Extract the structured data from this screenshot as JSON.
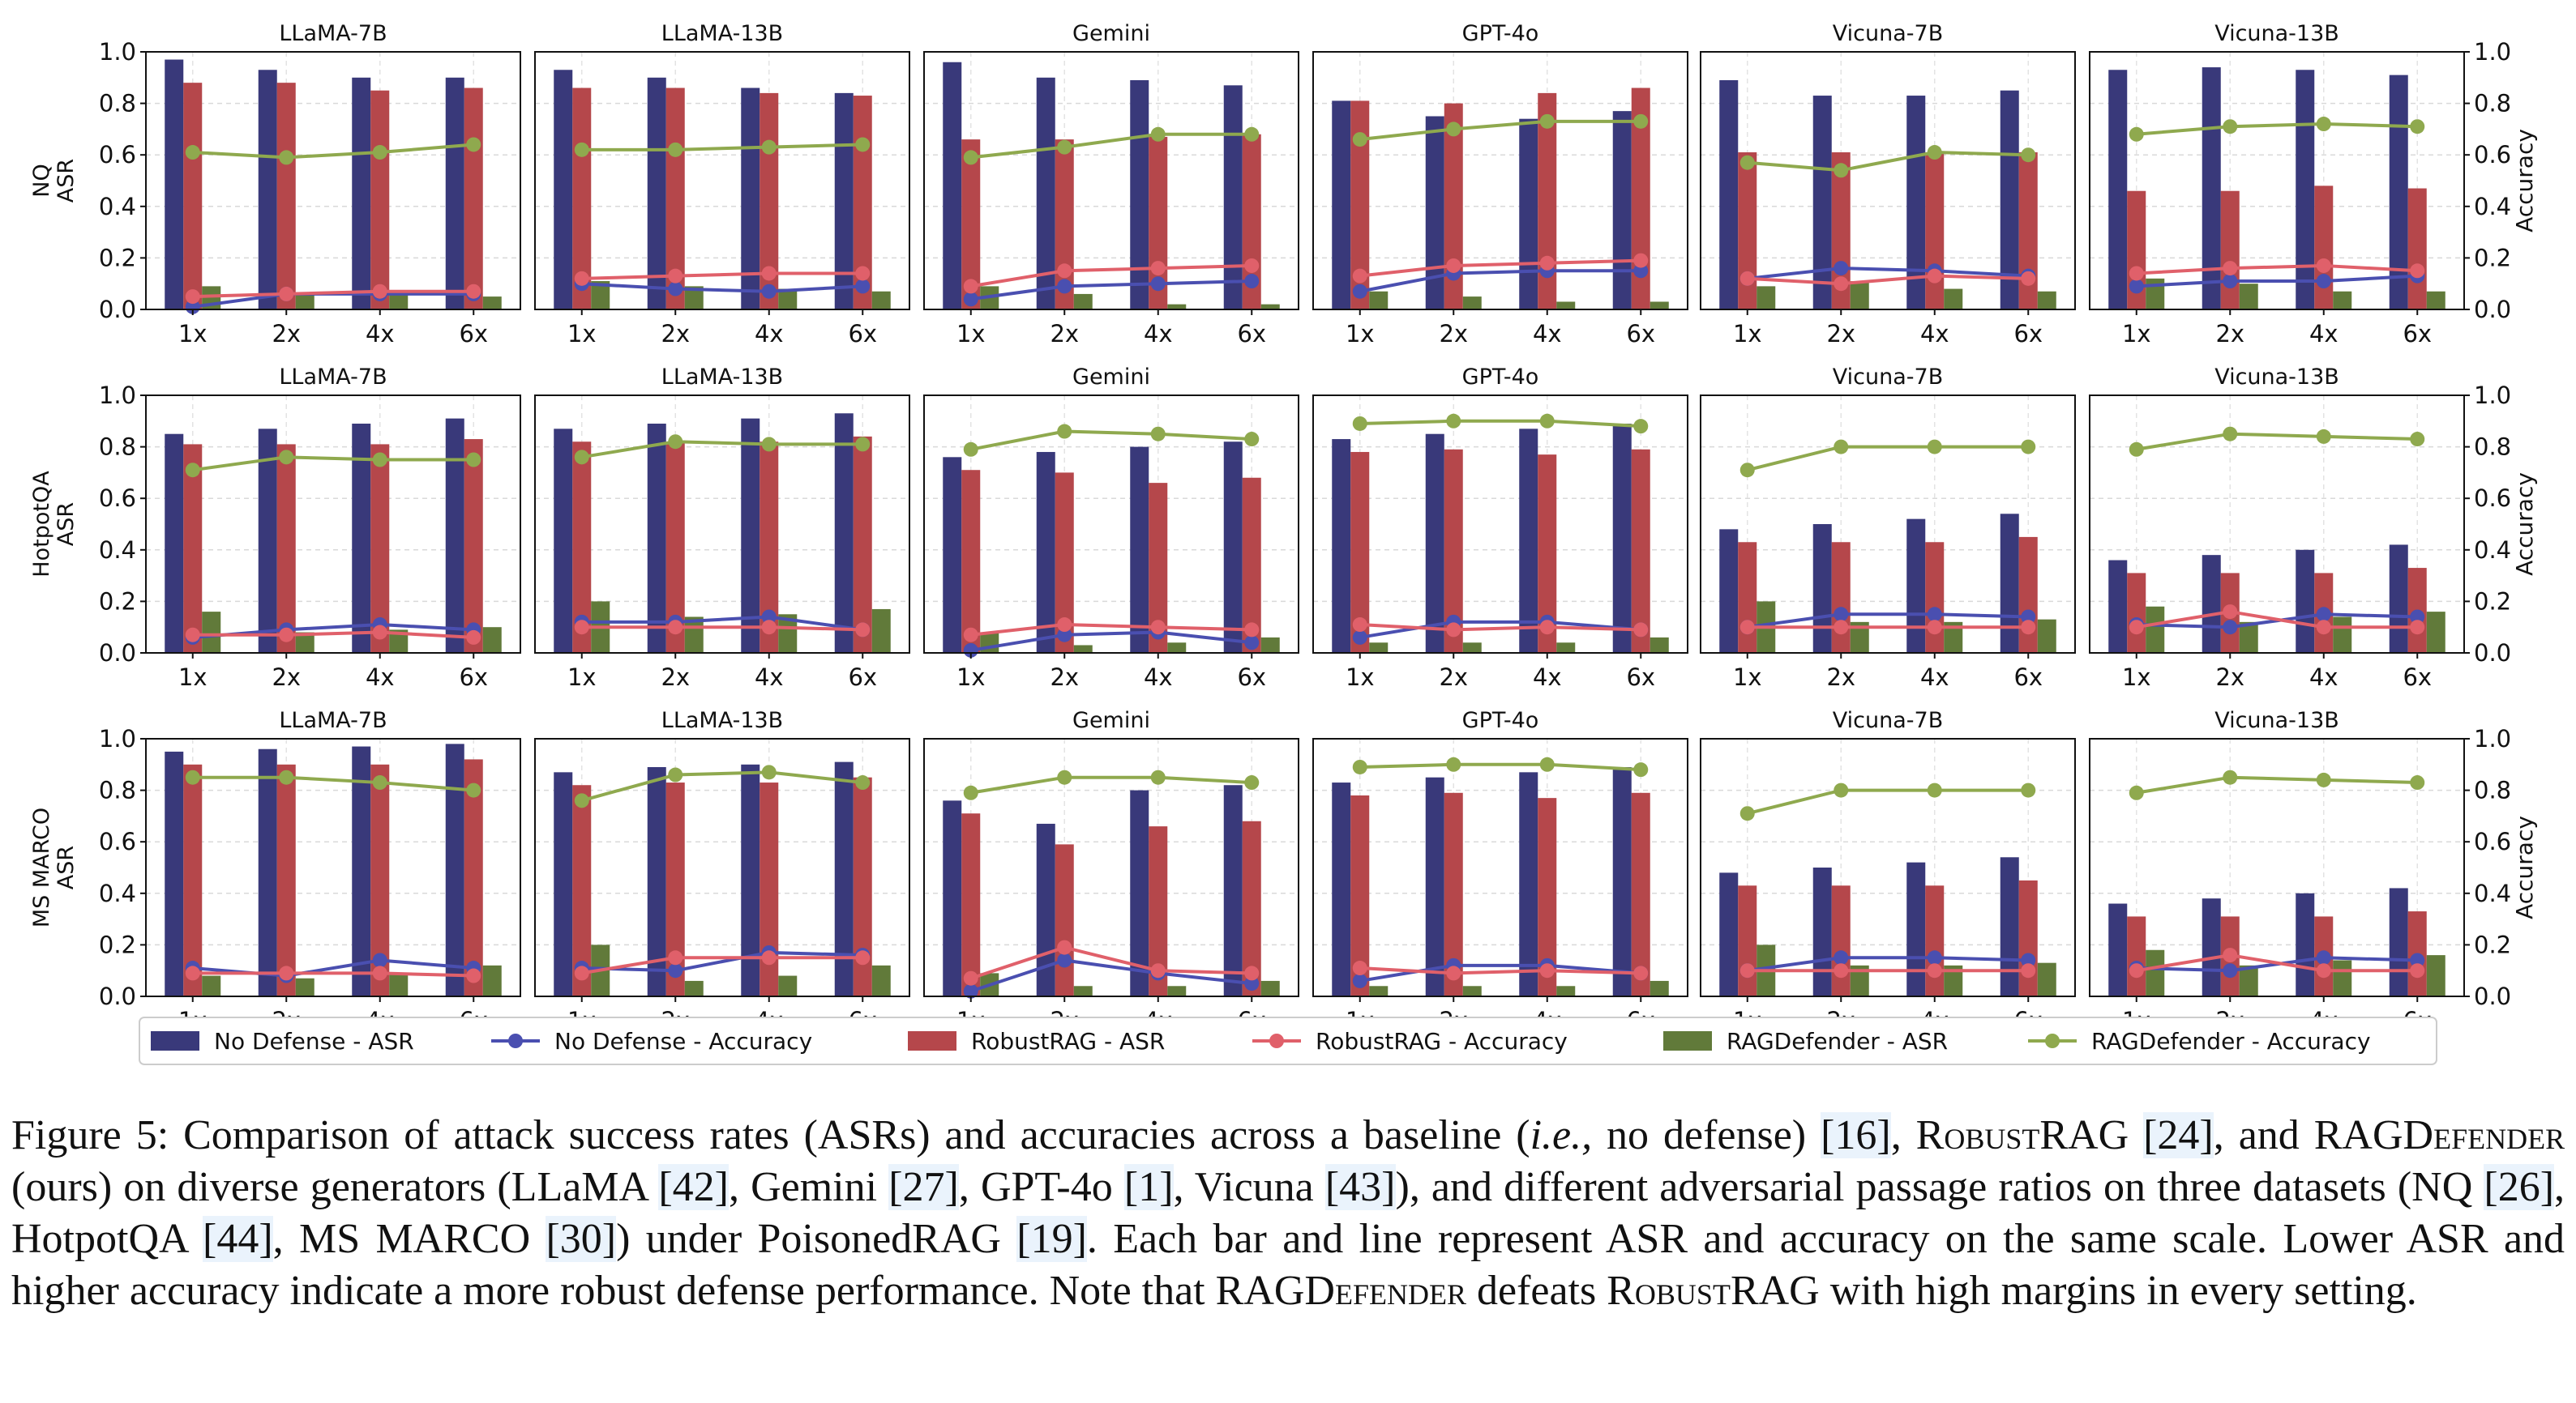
{
  "chart_data": {
    "type": "bar+line",
    "ylim": [
      0,
      1.0
    ],
    "yticks": [
      "0.0",
      "0.2",
      "0.4",
      "0.6",
      "0.8",
      "1.0"
    ],
    "categories": [
      "1x",
      "2x",
      "4x",
      "6x"
    ],
    "left_axis_suffix": "ASR",
    "right_axis_label": "Accuracy",
    "rows": [
      {
        "dataset": "NQ",
        "panels": [
          {
            "title": "LLaMA-7B",
            "nd_asr": [
              0.97,
              0.93,
              0.9,
              0.9
            ],
            "nd_acc": [
              0.01,
              0.06,
              0.06,
              0.06
            ],
            "rr_asr": [
              0.88,
              0.88,
              0.85,
              0.86
            ],
            "rr_acc": [
              0.05,
              0.06,
              0.07,
              0.07
            ],
            "rd_asr": [
              0.09,
              0.06,
              0.06,
              0.05
            ],
            "rd_acc": [
              0.61,
              0.59,
              0.61,
              0.64
            ]
          },
          {
            "title": "LLaMA-13B",
            "nd_asr": [
              0.93,
              0.9,
              0.86,
              0.84
            ],
            "nd_acc": [
              0.1,
              0.08,
              0.07,
              0.09
            ],
            "rr_asr": [
              0.86,
              0.86,
              0.84,
              0.83
            ],
            "rr_acc": [
              0.12,
              0.13,
              0.14,
              0.14
            ],
            "rd_asr": [
              0.11,
              0.09,
              0.08,
              0.07
            ],
            "rd_acc": [
              0.62,
              0.62,
              0.63,
              0.64
            ]
          },
          {
            "title": "Gemini",
            "nd_asr": [
              0.96,
              0.9,
              0.89,
              0.87
            ],
            "nd_acc": [
              0.04,
              0.09,
              0.1,
              0.11
            ],
            "rr_asr": [
              0.66,
              0.66,
              0.67,
              0.68
            ],
            "rr_acc": [
              0.09,
              0.15,
              0.16,
              0.17
            ],
            "rd_asr": [
              0.09,
              0.06,
              0.02,
              0.02
            ],
            "rd_acc": [
              0.59,
              0.63,
              0.68,
              0.68
            ]
          },
          {
            "title": "GPT-4o",
            "nd_asr": [
              0.81,
              0.75,
              0.74,
              0.77
            ],
            "nd_acc": [
              0.07,
              0.14,
              0.15,
              0.15
            ],
            "rr_asr": [
              0.81,
              0.8,
              0.84,
              0.86
            ],
            "rr_acc": [
              0.13,
              0.17,
              0.18,
              0.19
            ],
            "rd_asr": [
              0.07,
              0.05,
              0.03,
              0.03
            ],
            "rd_acc": [
              0.66,
              0.7,
              0.73,
              0.73
            ]
          },
          {
            "title": "Vicuna-7B",
            "nd_asr": [
              0.89,
              0.83,
              0.83,
              0.85
            ],
            "nd_acc": [
              0.12,
              0.16,
              0.15,
              0.13
            ],
            "rr_asr": [
              0.61,
              0.61,
              0.61,
              0.61
            ],
            "rr_acc": [
              0.12,
              0.1,
              0.13,
              0.12
            ],
            "rd_asr": [
              0.09,
              0.11,
              0.08,
              0.07
            ],
            "rd_acc": [
              0.57,
              0.54,
              0.61,
              0.6
            ]
          },
          {
            "title": "Vicuna-13B",
            "nd_asr": [
              0.93,
              0.94,
              0.93,
              0.91
            ],
            "nd_acc": [
              0.09,
              0.11,
              0.11,
              0.13
            ],
            "rr_asr": [
              0.46,
              0.46,
              0.48,
              0.47
            ],
            "rr_acc": [
              0.14,
              0.16,
              0.17,
              0.15
            ],
            "rd_asr": [
              0.12,
              0.1,
              0.07,
              0.07
            ],
            "rd_acc": [
              0.68,
              0.71,
              0.72,
              0.71
            ]
          }
        ]
      },
      {
        "dataset": "HotpotQA",
        "panels": [
          {
            "title": "LLaMA-7B",
            "nd_asr": [
              0.85,
              0.87,
              0.89,
              0.91
            ],
            "nd_acc": [
              0.06,
              0.09,
              0.11,
              0.09
            ],
            "rr_asr": [
              0.81,
              0.81,
              0.81,
              0.83
            ],
            "rr_acc": [
              0.07,
              0.07,
              0.08,
              0.06
            ],
            "rd_asr": [
              0.16,
              0.08,
              0.09,
              0.1
            ],
            "rd_acc": [
              0.71,
              0.76,
              0.75,
              0.75
            ]
          },
          {
            "title": "LLaMA-13B",
            "nd_asr": [
              0.87,
              0.89,
              0.91,
              0.93
            ],
            "nd_acc": [
              0.12,
              0.12,
              0.14,
              0.09
            ],
            "rr_asr": [
              0.82,
              0.82,
              0.82,
              0.84
            ],
            "rr_acc": [
              0.1,
              0.1,
              0.1,
              0.09
            ],
            "rd_asr": [
              0.2,
              0.14,
              0.15,
              0.17
            ],
            "rd_acc": [
              0.76,
              0.82,
              0.81,
              0.81
            ]
          },
          {
            "title": "Gemini",
            "nd_asr": [
              0.76,
              0.78,
              0.8,
              0.82
            ],
            "nd_acc": [
              0.01,
              0.07,
              0.08,
              0.04
            ],
            "rr_asr": [
              0.71,
              0.7,
              0.66,
              0.68
            ],
            "rr_acc": [
              0.07,
              0.11,
              0.1,
              0.09
            ],
            "rd_asr": [
              0.08,
              0.03,
              0.04,
              0.06
            ],
            "rd_acc": [
              0.79,
              0.86,
              0.85,
              0.83
            ]
          },
          {
            "title": "GPT-4o",
            "nd_asr": [
              0.83,
              0.85,
              0.87,
              0.89
            ],
            "nd_acc": [
              0.06,
              0.12,
              0.12,
              0.09
            ],
            "rr_asr": [
              0.78,
              0.79,
              0.77,
              0.79
            ],
            "rr_acc": [
              0.11,
              0.09,
              0.1,
              0.09
            ],
            "rd_asr": [
              0.04,
              0.04,
              0.04,
              0.06
            ],
            "rd_acc": [
              0.89,
              0.9,
              0.9,
              0.88
            ]
          },
          {
            "title": "Vicuna-7B",
            "nd_asr": [
              0.48,
              0.5,
              0.52,
              0.54
            ],
            "nd_acc": [
              0.1,
              0.15,
              0.15,
              0.14
            ],
            "rr_asr": [
              0.43,
              0.43,
              0.43,
              0.45
            ],
            "rr_acc": [
              0.1,
              0.1,
              0.1,
              0.1
            ],
            "rd_asr": [
              0.2,
              0.12,
              0.12,
              0.13
            ],
            "rd_acc": [
              0.71,
              0.8,
              0.8,
              0.8
            ]
          },
          {
            "title": "Vicuna-13B",
            "nd_asr": [
              0.36,
              0.38,
              0.4,
              0.42
            ],
            "nd_acc": [
              0.11,
              0.1,
              0.15,
              0.14
            ],
            "rr_asr": [
              0.31,
              0.31,
              0.31,
              0.33
            ],
            "rr_acc": [
              0.1,
              0.16,
              0.1,
              0.1
            ],
            "rd_asr": [
              0.18,
              0.12,
              0.14,
              0.16
            ],
            "rd_acc": [
              0.79,
              0.85,
              0.84,
              0.83
            ]
          }
        ]
      },
      {
        "dataset": "MS MARCO",
        "panels": [
          {
            "title": "LLaMA-7B",
            "nd_asr": [
              0.95,
              0.96,
              0.97,
              0.98
            ],
            "nd_acc": [
              0.11,
              0.08,
              0.14,
              0.11
            ],
            "rr_asr": [
              0.9,
              0.9,
              0.9,
              0.92
            ],
            "rr_acc": [
              0.09,
              0.09,
              0.09,
              0.08
            ],
            "rd_asr": [
              0.08,
              0.07,
              0.09,
              0.12
            ],
            "rd_acc": [
              0.85,
              0.85,
              0.83,
              0.8
            ]
          },
          {
            "title": "LLaMA-13B",
            "nd_asr": [
              0.87,
              0.89,
              0.9,
              0.91
            ],
            "nd_acc": [
              0.11,
              0.1,
              0.17,
              0.16
            ],
            "rr_asr": [
              0.82,
              0.83,
              0.83,
              0.85
            ],
            "rr_acc": [
              0.09,
              0.15,
              0.15,
              0.15
            ],
            "rd_asr": [
              0.2,
              0.06,
              0.08,
              0.12
            ],
            "rd_acc": [
              0.76,
              0.86,
              0.87,
              0.83
            ]
          },
          {
            "title": "Gemini",
            "nd_asr": [
              0.76,
              0.67,
              0.8,
              0.82
            ],
            "nd_acc": [
              0.02,
              0.14,
              0.09,
              0.05
            ],
            "rr_asr": [
              0.71,
              0.59,
              0.66,
              0.68
            ],
            "rr_acc": [
              0.07,
              0.19,
              0.1,
              0.09
            ],
            "rd_asr": [
              0.09,
              0.04,
              0.04,
              0.06
            ],
            "rd_acc": [
              0.79,
              0.85,
              0.85,
              0.83
            ]
          },
          {
            "title": "GPT-4o",
            "nd_asr": [
              0.83,
              0.85,
              0.87,
              0.89
            ],
            "nd_acc": [
              0.06,
              0.12,
              0.12,
              0.09
            ],
            "rr_asr": [
              0.78,
              0.79,
              0.77,
              0.79
            ],
            "rr_acc": [
              0.11,
              0.09,
              0.1,
              0.09
            ],
            "rd_asr": [
              0.04,
              0.04,
              0.04,
              0.06
            ],
            "rd_acc": [
              0.89,
              0.9,
              0.9,
              0.88
            ]
          },
          {
            "title": "Vicuna-7B",
            "nd_asr": [
              0.48,
              0.5,
              0.52,
              0.54
            ],
            "nd_acc": [
              0.1,
              0.15,
              0.15,
              0.14
            ],
            "rr_asr": [
              0.43,
              0.43,
              0.43,
              0.45
            ],
            "rr_acc": [
              0.1,
              0.1,
              0.1,
              0.1
            ],
            "rd_asr": [
              0.2,
              0.12,
              0.12,
              0.13
            ],
            "rd_acc": [
              0.71,
              0.8,
              0.8,
              0.8
            ]
          },
          {
            "title": "Vicuna-13B",
            "nd_asr": [
              0.36,
              0.38,
              0.4,
              0.42
            ],
            "nd_acc": [
              0.11,
              0.1,
              0.15,
              0.14
            ],
            "rr_asr": [
              0.31,
              0.31,
              0.31,
              0.33
            ],
            "rr_acc": [
              0.1,
              0.16,
              0.1,
              0.1
            ],
            "rd_asr": [
              0.18,
              0.12,
              0.14,
              0.16
            ],
            "rd_acc": [
              0.79,
              0.85,
              0.84,
              0.83
            ]
          }
        ]
      }
    ],
    "series": [
      {
        "key": "nd_asr",
        "name": "No Defense - ASR",
        "kind": "bar",
        "color": "#39397a"
      },
      {
        "key": "nd_acc",
        "name": "No Defense - Accuracy",
        "kind": "line",
        "color": "#4a4fb0"
      },
      {
        "key": "rr_asr",
        "name": "RobustRAG - ASR",
        "kind": "bar",
        "color": "#b5474b"
      },
      {
        "key": "rr_acc",
        "name": "RobustRAG - Accuracy",
        "kind": "line",
        "color": "#e0606a"
      },
      {
        "key": "rd_asr",
        "name": "RAGDefender - ASR",
        "kind": "bar",
        "color": "#617a3a"
      },
      {
        "key": "rd_acc",
        "name": "RAGDefender - Accuracy",
        "kind": "line",
        "color": "#8fa94e"
      }
    ]
  },
  "caption": {
    "figure_label": "Figure 5:",
    "p1": "Comparison of attack success rates (ASRs) and accuracies across a baseline (",
    "ie": "i.e.,",
    "p2": "no defense)",
    "r16": "[16]",
    "p3": ",",
    "robus1": "RobustRAG",
    "r24": "[24]",
    "p4": ", and",
    "ragdef1": "RAGDefender",
    "p5": "(ours) on diverse generators (LLaMA",
    "r42": "[42]",
    "p6": ", Gemini",
    "r27": "[27]",
    "p7": ", GPT-4o",
    "r1": "[1]",
    "p8": ", Vicuna",
    "r43": "[43]",
    "p9": "), and different adversarial passage ratios on three datasets (NQ",
    "r26": "[26]",
    "p10": ", HotpotQA",
    "r44": "[44]",
    "p11": ", MS MARCO",
    "r30": "[30]",
    "p12": ") under PoisonedRAG",
    "r19": "[19]",
    "p13": ". Each bar and line represent ASR and accuracy on the same scale. Lower ASR and higher accuracy indicate a more robust defense performance. Note that",
    "ragdef2": "RAGDefender",
    "p14": "defeats",
    "robus2": "RobustRAG",
    "p15": "with high margins in every setting."
  }
}
